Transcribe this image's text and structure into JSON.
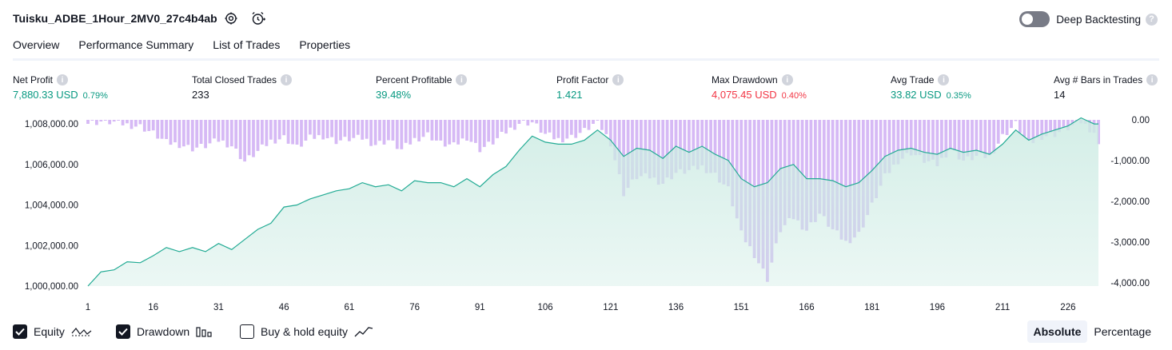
{
  "header": {
    "title": "Tuisku_ADBE_1Hour_2MV0_27c4b4ab",
    "deep_backtesting_label": "Deep Backtesting",
    "help_glyph": "?"
  },
  "tabs": [
    {
      "label": "Overview",
      "active": true
    },
    {
      "label": "Performance Summary",
      "active": false
    },
    {
      "label": "List of Trades",
      "active": false
    },
    {
      "label": "Properties",
      "active": false
    }
  ],
  "metrics": {
    "net_profit": {
      "label": "Net Profit",
      "value": "7,880.33 USD",
      "pct": "0.79%"
    },
    "total_closed_trades": {
      "label": "Total Closed Trades",
      "value": "233"
    },
    "percent_profitable": {
      "label": "Percent Profitable",
      "value": "39.48%"
    },
    "profit_factor": {
      "label": "Profit Factor",
      "value": "1.421"
    },
    "max_drawdown": {
      "label": "Max Drawdown",
      "value": "4,075.45 USD",
      "pct": "0.40%"
    },
    "avg_trade": {
      "label": "Avg Trade",
      "value": "33.82 USD",
      "pct": "0.35%"
    },
    "avg_bars": {
      "label": "Avg # Bars in Trades",
      "value": "14"
    }
  },
  "colors": {
    "equity_line": "#22ab94",
    "equity_fill": "#ccebe3",
    "drawdown_bar": "#d6b9f5",
    "positive": "#089981",
    "negative": "#f23645"
  },
  "chart_data": {
    "type": "line",
    "x_ticks": [
      1,
      16,
      31,
      46,
      61,
      76,
      91,
      106,
      121,
      136,
      151,
      166,
      181,
      196,
      211,
      226
    ],
    "x_range": [
      1,
      233
    ],
    "left_axis": {
      "ticks": [
        "1,008,000.00",
        "1,006,000.00",
        "1,004,000.00",
        "1,002,000.00",
        "1,000,000.00"
      ],
      "range": [
        1000000,
        1008200
      ]
    },
    "right_axis": {
      "ticks": [
        "0.00",
        "-1,000.00",
        "-2,000.00",
        "-3,000.00",
        "-4,000.00"
      ],
      "range": [
        -4075.45,
        0
      ]
    },
    "series": [
      {
        "name": "Equity",
        "axis": "left",
        "points": [
          [
            1,
            1000000
          ],
          [
            4,
            1000700
          ],
          [
            7,
            1000800
          ],
          [
            10,
            1001200
          ],
          [
            13,
            1001150
          ],
          [
            16,
            1001500
          ],
          [
            19,
            1001900
          ],
          [
            22,
            1001700
          ],
          [
            25,
            1001900
          ],
          [
            28,
            1001700
          ],
          [
            31,
            1002100
          ],
          [
            34,
            1001800
          ],
          [
            37,
            1002300
          ],
          [
            40,
            1002800
          ],
          [
            43,
            1003100
          ],
          [
            46,
            1003900
          ],
          [
            49,
            1004000
          ],
          [
            52,
            1004300
          ],
          [
            55,
            1004500
          ],
          [
            58,
            1004700
          ],
          [
            61,
            1004800
          ],
          [
            64,
            1005100
          ],
          [
            67,
            1004900
          ],
          [
            70,
            1005000
          ],
          [
            73,
            1004700
          ],
          [
            76,
            1005200
          ],
          [
            79,
            1005100
          ],
          [
            82,
            1005100
          ],
          [
            85,
            1004900
          ],
          [
            88,
            1005300
          ],
          [
            91,
            1004900
          ],
          [
            94,
            1005500
          ],
          [
            97,
            1005900
          ],
          [
            100,
            1006700
          ],
          [
            103,
            1007400
          ],
          [
            106,
            1007100
          ],
          [
            109,
            1007000
          ],
          [
            112,
            1007000
          ],
          [
            115,
            1007200
          ],
          [
            118,
            1007700
          ],
          [
            121,
            1007200
          ],
          [
            124,
            1006400
          ],
          [
            127,
            1006800
          ],
          [
            130,
            1006700
          ],
          [
            133,
            1006300
          ],
          [
            136,
            1006900
          ],
          [
            139,
            1006600
          ],
          [
            142,
            1006900
          ],
          [
            145,
            1006500
          ],
          [
            148,
            1006200
          ],
          [
            151,
            1005300
          ],
          [
            154,
            1004900
          ],
          [
            157,
            1005100
          ],
          [
            160,
            1005800
          ],
          [
            163,
            1006000
          ],
          [
            166,
            1005300
          ],
          [
            169,
            1005300
          ],
          [
            172,
            1005200
          ],
          [
            175,
            1004900
          ],
          [
            178,
            1005100
          ],
          [
            181,
            1005700
          ],
          [
            184,
            1006400
          ],
          [
            187,
            1006700
          ],
          [
            190,
            1006800
          ],
          [
            193,
            1006600
          ],
          [
            196,
            1006500
          ],
          [
            199,
            1006800
          ],
          [
            202,
            1006600
          ],
          [
            205,
            1006700
          ],
          [
            208,
            1006500
          ],
          [
            211,
            1007000
          ],
          [
            214,
            1007700
          ],
          [
            217,
            1007200
          ],
          [
            220,
            1007500
          ],
          [
            223,
            1007700
          ],
          [
            226,
            1007900
          ],
          [
            229,
            1008300
          ],
          [
            232,
            1008000
          ],
          [
            233,
            1008000
          ]
        ]
      },
      {
        "name": "Drawdown",
        "axis": "right",
        "points": [
          [
            1,
            -80
          ],
          [
            4,
            -40
          ],
          [
            7,
            -60
          ],
          [
            10,
            -120
          ],
          [
            13,
            -160
          ],
          [
            16,
            -330
          ],
          [
            19,
            -560
          ],
          [
            22,
            -600
          ],
          [
            25,
            -700
          ],
          [
            28,
            -640
          ],
          [
            31,
            -500
          ],
          [
            34,
            -630
          ],
          [
            37,
            -1020
          ],
          [
            40,
            -780
          ],
          [
            43,
            -520
          ],
          [
            46,
            -430
          ],
          [
            49,
            -680
          ],
          [
            52,
            -450
          ],
          [
            55,
            -390
          ],
          [
            58,
            -520
          ],
          [
            61,
            -470
          ],
          [
            64,
            -450
          ],
          [
            67,
            -600
          ],
          [
            70,
            -500
          ],
          [
            73,
            -740
          ],
          [
            76,
            -480
          ],
          [
            79,
            -360
          ],
          [
            82,
            -580
          ],
          [
            85,
            -640
          ],
          [
            88,
            -420
          ],
          [
            91,
            -720
          ],
          [
            94,
            -550
          ],
          [
            97,
            -300
          ],
          [
            100,
            -80
          ],
          [
            103,
            -60
          ],
          [
            106,
            -360
          ],
          [
            109,
            -480
          ],
          [
            112,
            -420
          ],
          [
            115,
            -270
          ],
          [
            118,
            -40
          ],
          [
            121,
            -560
          ],
          [
            124,
            -1800
          ],
          [
            127,
            -1400
          ],
          [
            130,
            -1400
          ],
          [
            133,
            -1550
          ],
          [
            136,
            -1300
          ],
          [
            139,
            -1250
          ],
          [
            142,
            -1150
          ],
          [
            145,
            -1350
          ],
          [
            148,
            -1700
          ],
          [
            151,
            -2800
          ],
          [
            154,
            -3300
          ],
          [
            157,
            -3900
          ],
          [
            160,
            -2700
          ],
          [
            163,
            -2400
          ],
          [
            166,
            -2700
          ],
          [
            169,
            -2300
          ],
          [
            172,
            -2700
          ],
          [
            175,
            -3000
          ],
          [
            178,
            -2800
          ],
          [
            181,
            -2100
          ],
          [
            184,
            -1400
          ],
          [
            187,
            -1000
          ],
          [
            190,
            -800
          ],
          [
            193,
            -1000
          ],
          [
            196,
            -1100
          ],
          [
            199,
            -700
          ],
          [
            202,
            -1000
          ],
          [
            205,
            -900
          ],
          [
            208,
            -900
          ],
          [
            211,
            -400
          ],
          [
            214,
            -100
          ],
          [
            217,
            -600
          ],
          [
            220,
            -400
          ],
          [
            223,
            -350
          ],
          [
            226,
            -200
          ],
          [
            229,
            -50
          ],
          [
            232,
            -300
          ],
          [
            233,
            -650
          ]
        ]
      }
    ]
  },
  "footer": {
    "legend": [
      {
        "label": "Equity",
        "checked": true
      },
      {
        "label": "Drawdown",
        "checked": true
      },
      {
        "label": "Buy & hold equity",
        "checked": false
      }
    ],
    "mode_absolute": "Absolute",
    "mode_percentage": "Percentage"
  }
}
